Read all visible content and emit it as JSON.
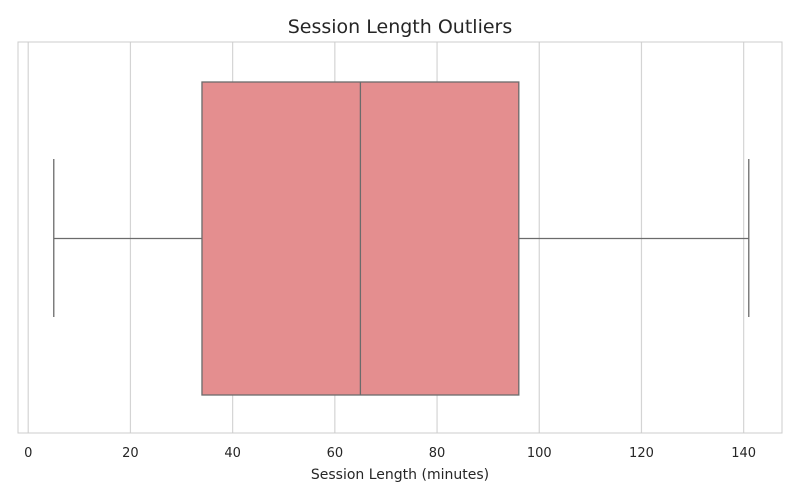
{
  "chart_data": {
    "type": "box",
    "title": "Session Length Outliers",
    "xlabel": "Session Length (minutes)",
    "ylabel": "",
    "orientation": "horizontal",
    "xlim": [
      -2,
      147.5
    ],
    "xticks": [
      0,
      20,
      40,
      60,
      80,
      100,
      120,
      140
    ],
    "grid": true,
    "box": {
      "whisker_low": 5,
      "q1": 34,
      "median": 65,
      "q3": 96,
      "whisker_high": 141
    },
    "colors": {
      "box_fill": "#e48e8f",
      "line": "#6b6b6b",
      "grid": "#d4d4d4",
      "spine": "#cccccc"
    }
  }
}
